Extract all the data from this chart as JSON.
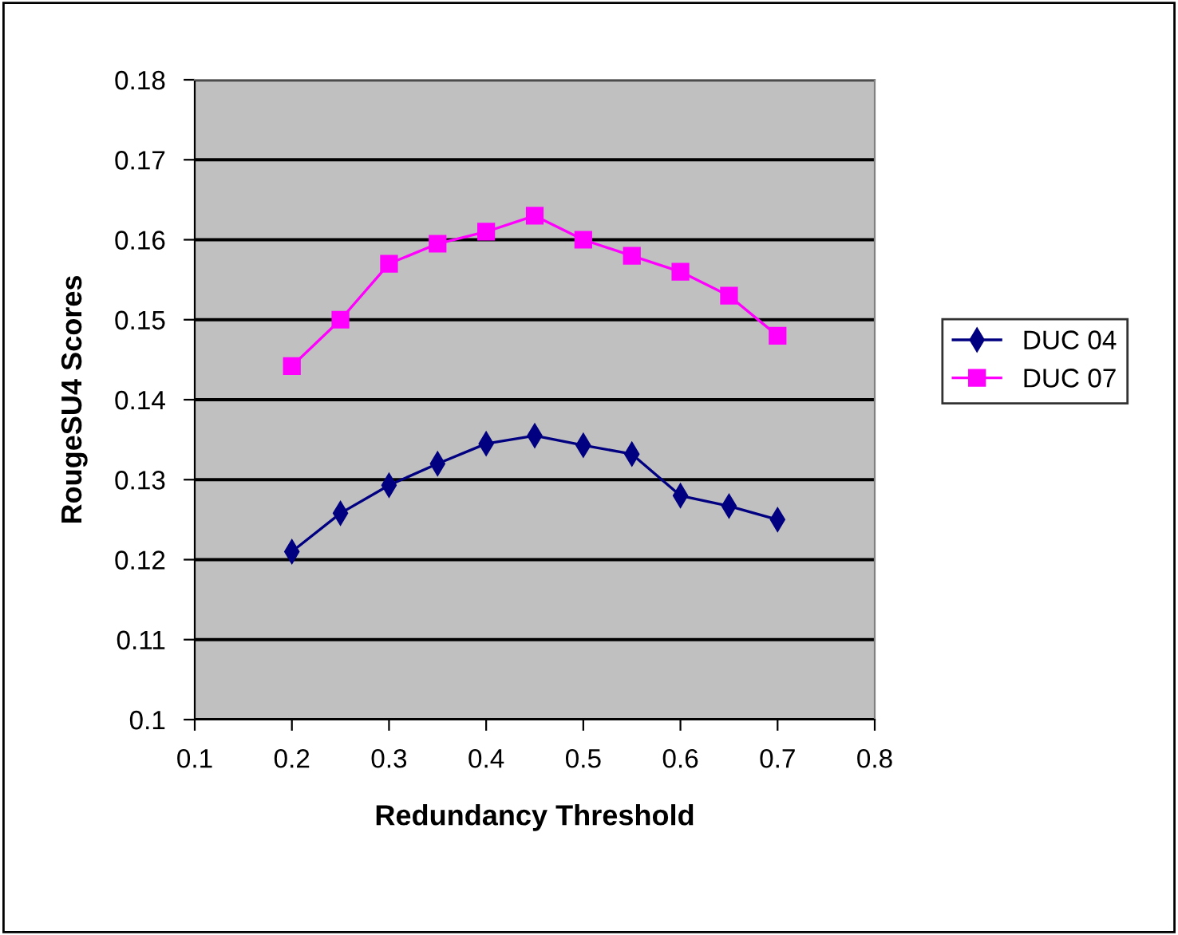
{
  "chart_data": {
    "type": "line",
    "xlabel": "Redundancy Threshold",
    "ylabel": "RougeSU4 Scores",
    "x": [
      0.2,
      0.25,
      0.3,
      0.35,
      0.4,
      0.45,
      0.5,
      0.55,
      0.6,
      0.65,
      0.7
    ],
    "series": [
      {
        "name": "DUC 04",
        "color": "#000080",
        "marker": "diamond",
        "values": [
          0.121,
          0.1258,
          0.1293,
          0.132,
          0.1345,
          0.1355,
          0.1343,
          0.1332,
          0.128,
          0.1267,
          0.125
        ]
      },
      {
        "name": "DUC 07",
        "color": "#ff00ff",
        "marker": "square",
        "values": [
          0.1442,
          0.15,
          0.157,
          0.1595,
          0.161,
          0.163,
          0.16,
          0.158,
          0.156,
          0.153,
          0.148
        ]
      }
    ],
    "xlim": [
      0.1,
      0.8
    ],
    "xticks": [
      0.1,
      0.2,
      0.3,
      0.4,
      0.5,
      0.6,
      0.7,
      0.8
    ],
    "ylim": [
      0.1,
      0.18
    ],
    "yticks": [
      0.1,
      0.11,
      0.12,
      0.13,
      0.14,
      0.15,
      0.16,
      0.17,
      0.18
    ],
    "grid": "y",
    "legend": "right"
  }
}
